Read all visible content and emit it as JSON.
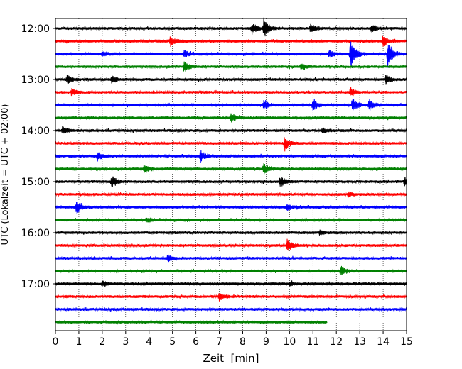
{
  "chart_data": {
    "type": "line",
    "xlabel": "Zeit  [min]",
    "ylabel": "UTC (Lokalzeit = UTC + 02:00)",
    "xlim": [
      0,
      15
    ],
    "x_ticks": [
      0,
      1,
      2,
      3,
      4,
      5,
      6,
      7,
      8,
      9,
      10,
      11,
      12,
      13,
      14,
      15
    ],
    "y_tick_labels": [
      "12:00",
      "13:00",
      "14:00",
      "15:00",
      "16:00",
      "17:00"
    ],
    "row_minutes": 15,
    "start_time": "12:00",
    "grid": "vertical dotted lines at each minute",
    "colors": [
      "#000000",
      "#ff0000",
      "#0000ff",
      "#008000"
    ],
    "traces": [
      {
        "start": "12:00",
        "end_min": 15,
        "events": [
          {
            "t": 8.4,
            "a": 0.9
          },
          {
            "t": 8.9,
            "a": 1.6
          },
          {
            "t": 10.9,
            "a": 0.7
          },
          {
            "t": 13.5,
            "a": 0.6
          }
        ]
      },
      {
        "start": "12:15",
        "end_min": 15,
        "events": [
          {
            "t": 4.9,
            "a": 0.8
          },
          {
            "t": 14.0,
            "a": 1.0
          }
        ]
      },
      {
        "start": "12:30",
        "end_min": 15,
        "events": [
          {
            "t": 2.0,
            "a": 0.5
          },
          {
            "t": 5.5,
            "a": 0.6
          },
          {
            "t": 11.7,
            "a": 0.6
          },
          {
            "t": 12.6,
            "a": 2.6
          },
          {
            "t": 14.2,
            "a": 2.2
          }
        ]
      },
      {
        "start": "12:45",
        "end_min": 15,
        "events": [
          {
            "t": 5.5,
            "a": 0.9
          },
          {
            "t": 10.5,
            "a": 0.6
          }
        ]
      },
      {
        "start": "13:00",
        "end_min": 15,
        "events": [
          {
            "t": 0.5,
            "a": 0.7
          },
          {
            "t": 2.4,
            "a": 0.6
          },
          {
            "t": 14.1,
            "a": 0.8
          }
        ]
      },
      {
        "start": "13:15",
        "end_min": 15,
        "events": [
          {
            "t": 0.7,
            "a": 0.6
          },
          {
            "t": 12.6,
            "a": 0.7
          }
        ]
      },
      {
        "start": "13:30",
        "end_min": 15,
        "events": [
          {
            "t": 8.9,
            "a": 0.8
          },
          {
            "t": 11.0,
            "a": 0.9
          },
          {
            "t": 12.7,
            "a": 1.1
          },
          {
            "t": 13.4,
            "a": 0.9
          }
        ]
      },
      {
        "start": "13:45",
        "end_min": 15,
        "events": [
          {
            "t": 7.5,
            "a": 0.8
          }
        ]
      },
      {
        "start": "14:00",
        "end_min": 15,
        "events": [
          {
            "t": 0.3,
            "a": 0.6
          },
          {
            "t": 11.4,
            "a": 0.5
          }
        ]
      },
      {
        "start": "14:15",
        "end_min": 15,
        "events": [
          {
            "t": 9.8,
            "a": 1.2
          }
        ]
      },
      {
        "start": "14:30",
        "end_min": 15,
        "events": [
          {
            "t": 1.8,
            "a": 0.8
          },
          {
            "t": 6.2,
            "a": 0.9
          }
        ]
      },
      {
        "start": "14:45",
        "end_min": 15,
        "events": [
          {
            "t": 3.8,
            "a": 0.7
          },
          {
            "t": 8.9,
            "a": 0.9
          }
        ]
      },
      {
        "start": "15:00",
        "end_min": 15,
        "events": [
          {
            "t": 2.4,
            "a": 1.1
          },
          {
            "t": 9.6,
            "a": 0.9
          },
          {
            "t": 14.9,
            "a": 0.7
          }
        ]
      },
      {
        "start": "15:15",
        "end_min": 15,
        "events": [
          {
            "t": 12.5,
            "a": 0.4
          }
        ]
      },
      {
        "start": "15:30",
        "end_min": 15,
        "events": [
          {
            "t": 0.9,
            "a": 1.0
          },
          {
            "t": 9.9,
            "a": 0.5
          }
        ]
      },
      {
        "start": "15:45",
        "end_min": 15,
        "events": [
          {
            "t": 3.9,
            "a": 0.4
          }
        ]
      },
      {
        "start": "16:00",
        "end_min": 15,
        "events": [
          {
            "t": 11.3,
            "a": 0.4
          }
        ]
      },
      {
        "start": "16:15",
        "end_min": 15,
        "events": [
          {
            "t": 9.9,
            "a": 1.0
          }
        ]
      },
      {
        "start": "16:30",
        "end_min": 15,
        "events": [
          {
            "t": 4.8,
            "a": 0.5
          }
        ]
      },
      {
        "start": "16:45",
        "end_min": 15,
        "events": [
          {
            "t": 12.2,
            "a": 0.9
          }
        ]
      },
      {
        "start": "17:00",
        "end_min": 15,
        "events": [
          {
            "t": 2.0,
            "a": 0.4
          },
          {
            "t": 10.0,
            "a": 0.3
          }
        ]
      },
      {
        "start": "17:15",
        "end_min": 15,
        "events": [
          {
            "t": 7.0,
            "a": 0.6
          }
        ]
      },
      {
        "start": "17:30",
        "end_min": 15,
        "events": []
      },
      {
        "start": "17:45",
        "end_min": 11.6,
        "events": []
      }
    ]
  }
}
